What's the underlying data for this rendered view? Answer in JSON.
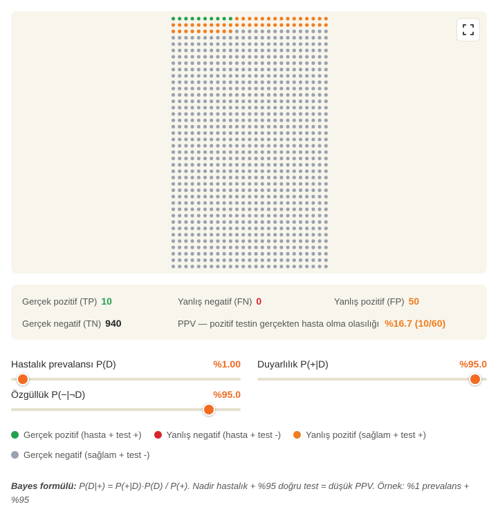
{
  "legend": {
    "tp": {
      "label": "Gerçek pozitif (hasta + test +)",
      "color": "#24a150"
    },
    "fn": {
      "label": "Yanlış negatif (hasta + test -)",
      "color": "#d6262d"
    },
    "fp": {
      "label": "Yanlış pozitif (sağlam + test +)",
      "color": "#ef7d1f"
    },
    "tn": {
      "label": "Gerçek negatif (sağlam + test -)",
      "color": "#98a2b0"
    }
  },
  "grid": {
    "total": 1000,
    "columns": 25,
    "tp": 10,
    "fn": 0,
    "fp": 50,
    "tn": 940
  },
  "stats": {
    "tp_label": "Gerçek pozitif (TP)",
    "tp_value": "10",
    "fn_label": "Yanlış negatif (FN)",
    "fn_value": "0",
    "fp_label": "Yanlış pozitif (FP)",
    "fp_value": "50",
    "tn_label": "Gerçek negatif (TN)",
    "tn_value": "940",
    "ppv_label": "PPV — pozitif testin gerçekten hasta olma olasılığı",
    "ppv_value": "%16.7 (10/60)"
  },
  "sliders": {
    "prevalence": {
      "label": "Hastalık prevalansı P(D)",
      "value_text": "%1.00",
      "fraction": 0.05
    },
    "sensitivity": {
      "label": "Duyarlılık P(+|D)",
      "value_text": "%95.0",
      "fraction": 0.95
    },
    "specificity": {
      "label": "Özgüllük P(−|¬D)",
      "value_text": "%95.0",
      "fraction": 0.86
    }
  },
  "formula": {
    "title": "Bayes formülü:",
    "text": "P(D|+) = P(+|D)·P(D) / P(+). Nadir hastalık + %95 doğru test = düşük PPV. Örnek: %1 prevalans + %95"
  },
  "icons": {
    "expand": "expand-icon"
  }
}
